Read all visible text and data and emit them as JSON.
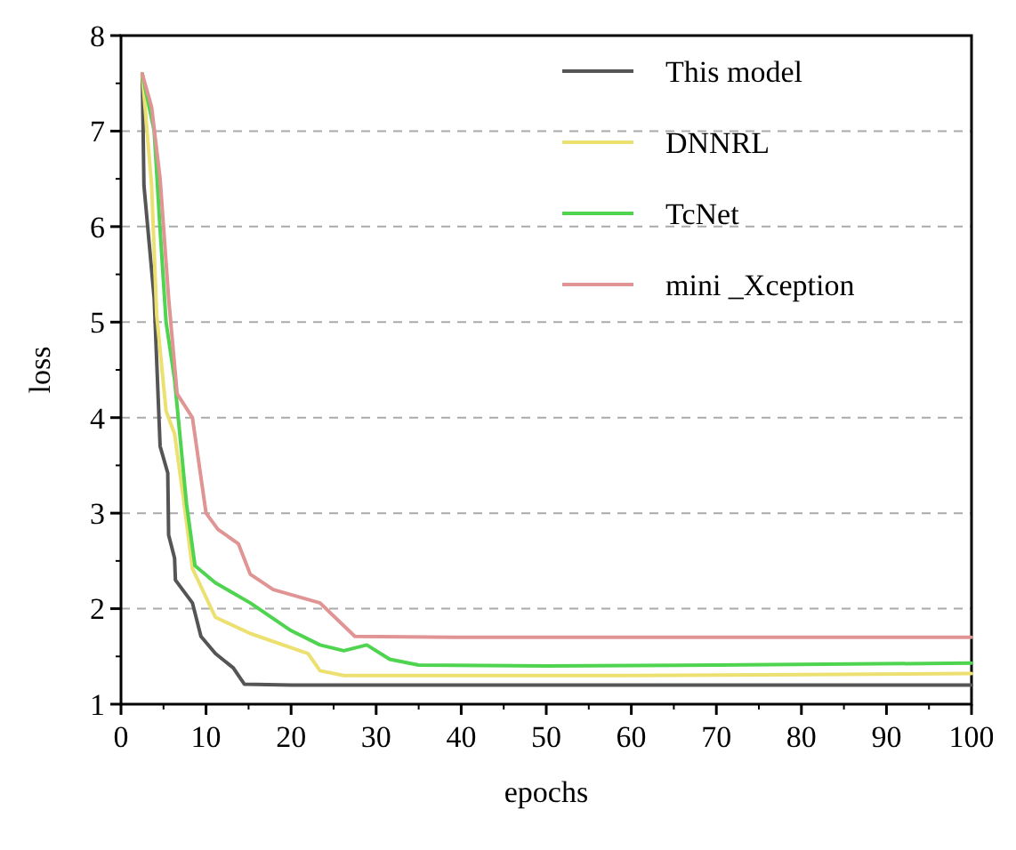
{
  "chart_data": {
    "type": "line",
    "xlabel": "epochs",
    "ylabel": "loss",
    "xlim": [
      0,
      100
    ],
    "ylim": [
      1,
      8
    ],
    "xticks": [
      0,
      10,
      20,
      30,
      40,
      50,
      60,
      70,
      80,
      90,
      100
    ],
    "yticks": [
      1,
      2,
      3,
      4,
      5,
      6,
      7,
      8
    ],
    "grid": "y",
    "legend": "top right",
    "line_style": "solid",
    "marker": "none",
    "series": [
      {
        "name": "This model",
        "color": "#555555",
        "x": [
          2.5,
          2.7,
          3.9,
          4.6,
          5.5,
          5.6,
          6.3,
          6.4,
          8.4,
          9.4,
          11.1,
          13.2,
          14.5,
          20,
          40,
          60,
          80,
          100
        ],
        "values": [
          7.6,
          6.43,
          5.25,
          3.7,
          3.42,
          2.77,
          2.53,
          2.3,
          2.06,
          1.71,
          1.53,
          1.38,
          1.21,
          1.2,
          1.2,
          1.2,
          1.2,
          1.2
        ]
      },
      {
        "name": "DNNRL",
        "color": "#ece070",
        "x": [
          2.5,
          3.6,
          4.2,
          5.3,
          6.3,
          7.3,
          8.4,
          11.1,
          15.2,
          22,
          23.4,
          26.2,
          40,
          60,
          80,
          100
        ],
        "values": [
          7.6,
          6.43,
          5.07,
          4.07,
          3.83,
          3.18,
          2.42,
          1.91,
          1.74,
          1.53,
          1.35,
          1.3,
          1.3,
          1.3,
          1.31,
          1.32
        ]
      },
      {
        "name": "TcNet",
        "color": "#4ed44e",
        "x": [
          2.5,
          3.9,
          4.6,
          5.3,
          6.3,
          7.7,
          8.7,
          11.1,
          15.2,
          20,
          23.4,
          26.2,
          28.9,
          31.6,
          35,
          50,
          70,
          100
        ],
        "values": [
          7.6,
          7.0,
          5.97,
          5.0,
          4.4,
          3.1,
          2.45,
          2.27,
          2.06,
          1.77,
          1.62,
          1.56,
          1.62,
          1.47,
          1.41,
          1.4,
          1.41,
          1.43
        ]
      },
      {
        "name": "mini _Xception",
        "color": "#e09494",
        "x": [
          2.5,
          3.6,
          4.6,
          5.6,
          6.6,
          8.4,
          10,
          11.4,
          13.8,
          15.2,
          17.9,
          23.4,
          24.8,
          27.5,
          40,
          60,
          80,
          100
        ],
        "values": [
          7.6,
          7.25,
          6.5,
          5.25,
          4.25,
          4.0,
          3.0,
          2.83,
          2.68,
          2.36,
          2.2,
          2.06,
          1.94,
          1.71,
          1.7,
          1.7,
          1.7,
          1.7
        ]
      }
    ]
  }
}
